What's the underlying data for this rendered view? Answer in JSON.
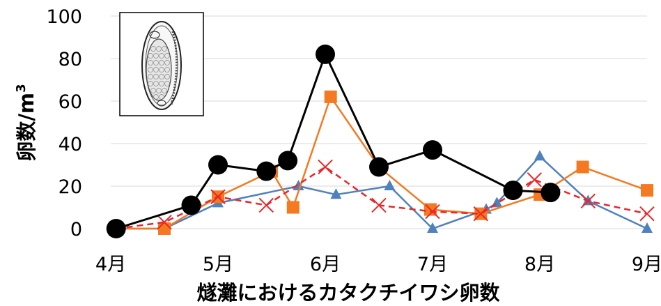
{
  "chart_data": {
    "type": "line",
    "xlabel": "燧灘におけるカタクチイワシ卵数",
    "ylabel_main": "卵数/m",
    "ylabel_sup": "3",
    "ylim": [
      0,
      100
    ],
    "yticks": [
      0,
      20,
      40,
      60,
      80,
      100
    ],
    "xlim": [
      4,
      9
    ],
    "xticks": [
      {
        "x": 4,
        "label": "4月"
      },
      {
        "x": 5,
        "label": "5月"
      },
      {
        "x": 6,
        "label": "6月"
      },
      {
        "x": 7,
        "label": "7月"
      },
      {
        "x": 8,
        "label": "8月"
      },
      {
        "x": 9,
        "label": "9月"
      }
    ],
    "grid": "horizontal",
    "inset_image": "anchovy-egg-illustration",
    "series": [
      {
        "color": "#4f81bd",
        "marker": "triangle",
        "dashed": false,
        "points": [
          [
            4.05,
            0
          ],
          [
            4.5,
            0
          ],
          [
            5.0,
            12
          ],
          [
            5.75,
            20
          ],
          [
            6.1,
            16
          ],
          [
            6.6,
            20
          ],
          [
            7.0,
            0
          ],
          [
            7.5,
            9
          ],
          [
            7.6,
            12
          ],
          [
            8.0,
            34
          ],
          [
            8.45,
            13
          ],
          [
            9.0,
            0
          ]
        ]
      },
      {
        "color": "#f47920",
        "marker": "square",
        "dashed": false,
        "points": [
          [
            4.05,
            0
          ],
          [
            4.5,
            0
          ],
          [
            5.0,
            15
          ],
          [
            5.5,
            27
          ],
          [
            5.7,
            10
          ],
          [
            6.05,
            62
          ],
          [
            6.5,
            29
          ],
          [
            6.98,
            9
          ],
          [
            7.45,
            7
          ],
          [
            8.0,
            16
          ],
          [
            8.4,
            29
          ],
          [
            9.0,
            18
          ]
        ]
      },
      {
        "color": "#e8262a",
        "marker": "x",
        "dashed": true,
        "points": [
          [
            4.05,
            0
          ],
          [
            4.5,
            3
          ],
          [
            5.0,
            15
          ],
          [
            5.45,
            11
          ],
          [
            6.0,
            29
          ],
          [
            6.5,
            11
          ],
          [
            7.0,
            8
          ],
          [
            7.45,
            7
          ],
          [
            7.95,
            23
          ],
          [
            8.45,
            13
          ],
          [
            9.0,
            7
          ]
        ]
      },
      {
        "color": "#000000",
        "marker": "circle",
        "dashed": false,
        "points": [
          [
            4.05,
            0
          ],
          [
            4.75,
            11
          ],
          [
            5.0,
            30
          ],
          [
            5.45,
            27
          ],
          [
            5.65,
            32
          ],
          [
            6.0,
            82
          ],
          [
            6.5,
            29
          ],
          [
            7.0,
            37
          ],
          [
            7.75,
            18
          ],
          [
            8.1,
            17
          ]
        ]
      }
    ]
  }
}
